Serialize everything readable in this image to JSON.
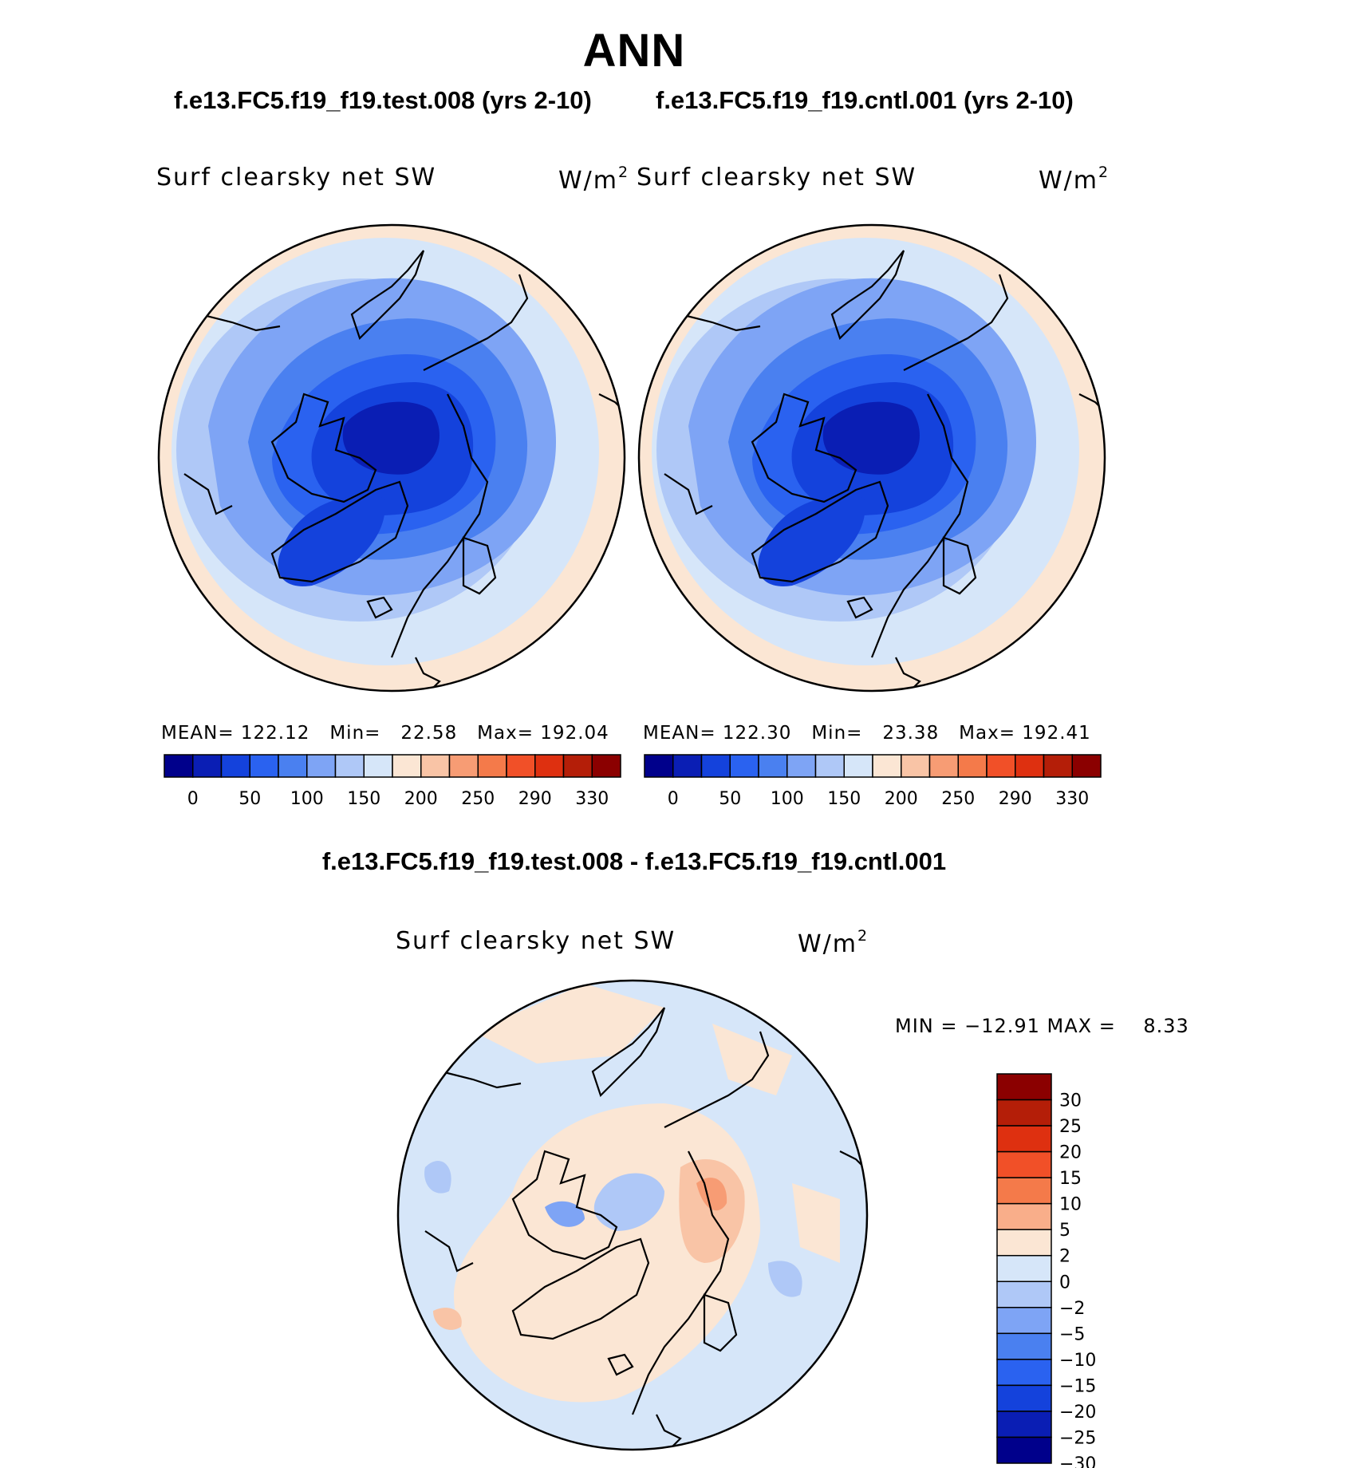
{
  "title": "ANN",
  "panels": [
    {
      "case": "f.e13.FC5.f19_f19.test.008 (yrs 2-10)",
      "variable": "Surf clearsky net SW",
      "units_base": "W/m",
      "units_exp": "2",
      "stats": {
        "mean_label": "MEAN=",
        "mean": "122.12",
        "min_label": "Min=",
        "min": "22.58",
        "max_label": "Max=",
        "max": "192.04"
      }
    },
    {
      "case": "f.e13.FC5.f19_f19.cntl.001 (yrs 2-10)",
      "variable": "Surf clearsky net SW",
      "units_base": "W/m",
      "units_exp": "2",
      "stats": {
        "mean_label": "MEAN=",
        "mean": "122.30",
        "min_label": "Min=",
        "min": "23.38",
        "max_label": "Max=",
        "max": "192.41"
      }
    }
  ],
  "diff": {
    "title": "f.e13.FC5.f19_f19.test.008 - f.e13.FC5.f19_f19.cntl.001",
    "variable": "Surf clearsky net SW",
    "units_base": "W/m",
    "units_exp": "2",
    "minmax": "MIN = −12.91 MAX =    8.33"
  },
  "colorbar_field": {
    "colors": [
      "#00008b",
      "#0a1eb4",
      "#1442dc",
      "#2a62f0",
      "#4a80f0",
      "#7ea4f5",
      "#afc8f7",
      "#d6e6f9",
      "#fbe6d4",
      "#f9c4a6",
      "#f79c74",
      "#f47a4a",
      "#f15028",
      "#de3010",
      "#b41e08",
      "#8b0000"
    ],
    "tick_labels": [
      "0",
      "50",
      "100",
      "150",
      "200",
      "250",
      "290",
      "330"
    ]
  },
  "colorbar_diff": {
    "colors": [
      "#8b0000",
      "#b41e08",
      "#de3010",
      "#f15028",
      "#f47a4a",
      "#f9ae8a",
      "#fbe6d4",
      "#d6e6f9",
      "#afc8f7",
      "#7ea4f5",
      "#4a80f0",
      "#2a62f0",
      "#1442dc",
      "#0a1eb4",
      "#00008b"
    ],
    "tick_labels": [
      "30",
      "25",
      "20",
      "15",
      "10",
      "5",
      "2",
      "0",
      "−2",
      "−5",
      "−10",
      "−15",
      "−20",
      "−25",
      "−30"
    ]
  }
}
